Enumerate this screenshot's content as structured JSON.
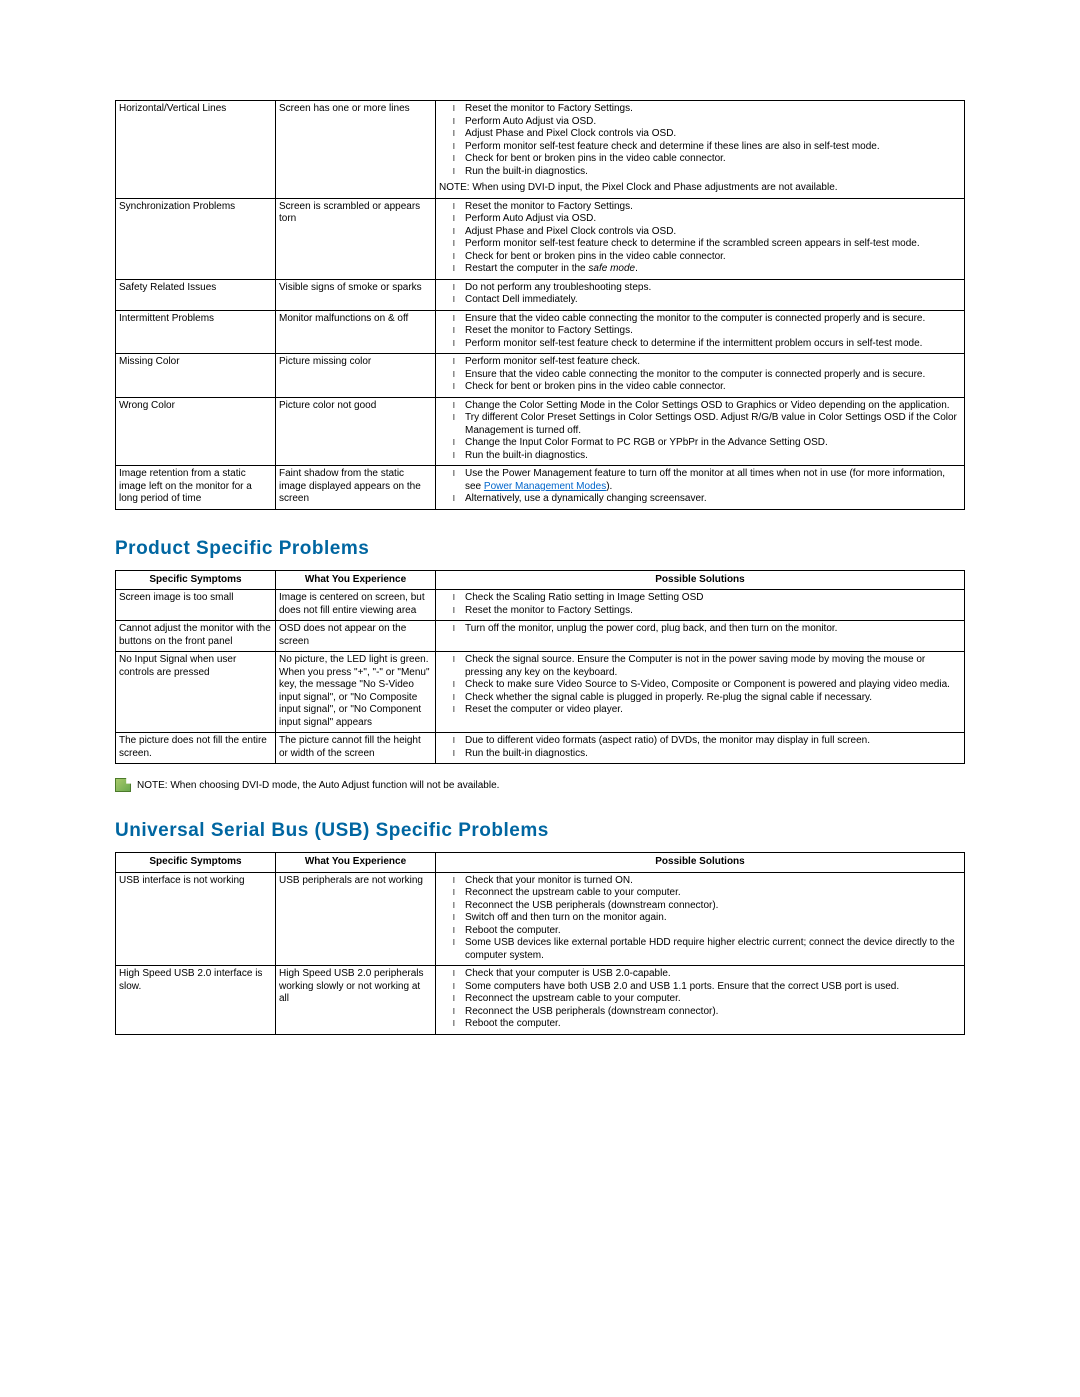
{
  "table1": {
    "rows": [
      {
        "symptom": "Horizontal/Vertical Lines",
        "experience": "Screen has one or more lines",
        "solutions": [
          "Reset the monitor to Factory Settings.",
          "Perform Auto Adjust via OSD.",
          "Adjust Phase and Pixel Clock controls via OSD.",
          "Perform monitor self-test feature check and determine if these lines are also in self-test mode.",
          "Check for bent or broken pins in the video cable connector.",
          "Run the built-in diagnostics."
        ],
        "note_html": "NOTE: When using DVI-D input, the Pixel Clock and Phase adjustments are not available."
      },
      {
        "symptom": "Synchronization Problems",
        "experience": "Screen is scrambled or appears torn",
        "solutions": [
          "Reset the monitor to Factory Settings.",
          "Perform Auto Adjust via OSD.",
          "Adjust Phase and Pixel Clock controls via OSD.",
          "Perform monitor self-test feature check to determine if the scrambled screen appears in self-test mode.",
          "Check for bent or broken pins in the video cable connector.",
          "Restart the computer in the <em>safe mode</em>."
        ]
      },
      {
        "symptom": "Safety Related Issues",
        "experience": "Visible signs of smoke or sparks",
        "solutions": [
          "Do not perform any troubleshooting steps.",
          "Contact Dell immediately."
        ]
      },
      {
        "symptom": "Intermittent Problems",
        "experience": "Monitor malfunctions on & off",
        "solutions": [
          "Ensure that the video cable connecting the monitor to the computer is connected properly and is secure.",
          "Reset the monitor to Factory Settings.",
          "Perform monitor self-test feature check to determine if the intermittent problem occurs in self-test mode."
        ]
      },
      {
        "symptom": "Missing Color",
        "experience": "Picture missing color",
        "solutions": [
          "Perform monitor self-test feature check.",
          "Ensure that the video cable connecting the monitor to the computer is connected properly and is secure.",
          "Check for bent or broken pins in the video cable connector."
        ]
      },
      {
        "symptom": "Wrong Color",
        "experience": "Picture color not good",
        "solutions": [
          "Change the Color Setting Mode in the Color Settings OSD to Graphics or Video depending on the application.",
          "Try different Color Preset Settings in Color Settings OSD. Adjust R/G/B value in Color Settings OSD if the Color Management is turned off.",
          "Change the Input Color Format to PC RGB or YPbPr in the Advance Setting OSD.",
          "Run the built-in diagnostics."
        ]
      },
      {
        "symptom": "Image retention from a static image left on the monitor for a long period of time",
        "experience": "Faint shadow from the static image displayed appears on the screen",
        "solutions": [
          "Use the Power Management feature to turn off the monitor at all times when not in use (for more information, see <a class='link' href='#'>Power Management Modes</a>).",
          "Alternatively, use a dynamically changing screensaver."
        ]
      }
    ]
  },
  "heading2": "Product Specific Problems",
  "table2": {
    "headers": [
      "Specific Symptoms",
      "What You Experience",
      "Possible Solutions"
    ],
    "rows": [
      {
        "symptom": "Screen image is too small",
        "experience": "Image is centered on screen, but does not fill entire viewing area",
        "solutions": [
          "Check the Scaling Ratio setting in Image Setting OSD",
          "Reset the monitor to Factory Settings."
        ]
      },
      {
        "symptom": "Cannot adjust the monitor with the buttons on the front panel",
        "experience": "OSD does not appear on the screen",
        "solutions": [
          "Turn off the monitor, unplug the power cord, plug back, and then turn on the monitor."
        ]
      },
      {
        "symptom": "No Input Signal when user controls are pressed",
        "experience": "No picture, the LED light is green. When you press \"+\", \"-\" or \"Menu\" key, the message \"No S-Video input signal\", or \"No Composite input signal\", or \"No Component input signal\" appears",
        "solutions": [
          "Check the signal source. Ensure the Computer is not in the power saving mode by moving the mouse or pressing any key on the keyboard.",
          "Check to make sure Video Source to S-Video, Composite or Component is powered and playing video media.",
          "Check whether the signal cable is plugged in properly. Re-plug the signal cable if necessary.",
          "Reset the computer or video player."
        ]
      },
      {
        "symptom": "The picture does not fill the entire screen.",
        "experience": "The picture cannot fill the height or width of the screen",
        "solutions": [
          "Due to different video formats (aspect ratio) of DVDs, the monitor may display in full screen.",
          "Run the built-in diagnostics."
        ]
      }
    ]
  },
  "note2": "NOTE: When choosing DVI-D mode, the Auto Adjust function will not be available.",
  "heading3": "Universal Serial Bus (USB) Specific Problems",
  "table3": {
    "headers": [
      "Specific Symptoms",
      "What You Experience",
      "Possible Solutions"
    ],
    "rows": [
      {
        "symptom": "USB interface is not working",
        "experience": "USB peripherals are not working",
        "solutions": [
          "Check that your monitor is turned ON.",
          "Reconnect the upstream cable to your computer.",
          "Reconnect the USB peripherals (downstream connector).",
          "Switch off and then turn on the monitor again.",
          "Reboot the computer.",
          "Some USB devices like external portable HDD require higher electric current; connect the device directly to the computer system."
        ]
      },
      {
        "symptom": "High Speed USB 2.0 interface is slow.",
        "experience": "High Speed USB 2.0 peripherals working slowly or not working at all",
        "solutions": [
          "Check that your computer is USB 2.0-capable.",
          "Some computers have both USB 2.0 and USB 1.1 ports. Ensure that the correct USB port is used.",
          "Reconnect the upstream cable to your computer.",
          "Reconnect the USB peripherals (downstream connector).",
          "Reboot the computer."
        ]
      }
    ]
  },
  "colors": {
    "heading": "#0066a1",
    "link": "#0066cc",
    "border": "#000000",
    "text": "#000000",
    "background": "#ffffff"
  }
}
